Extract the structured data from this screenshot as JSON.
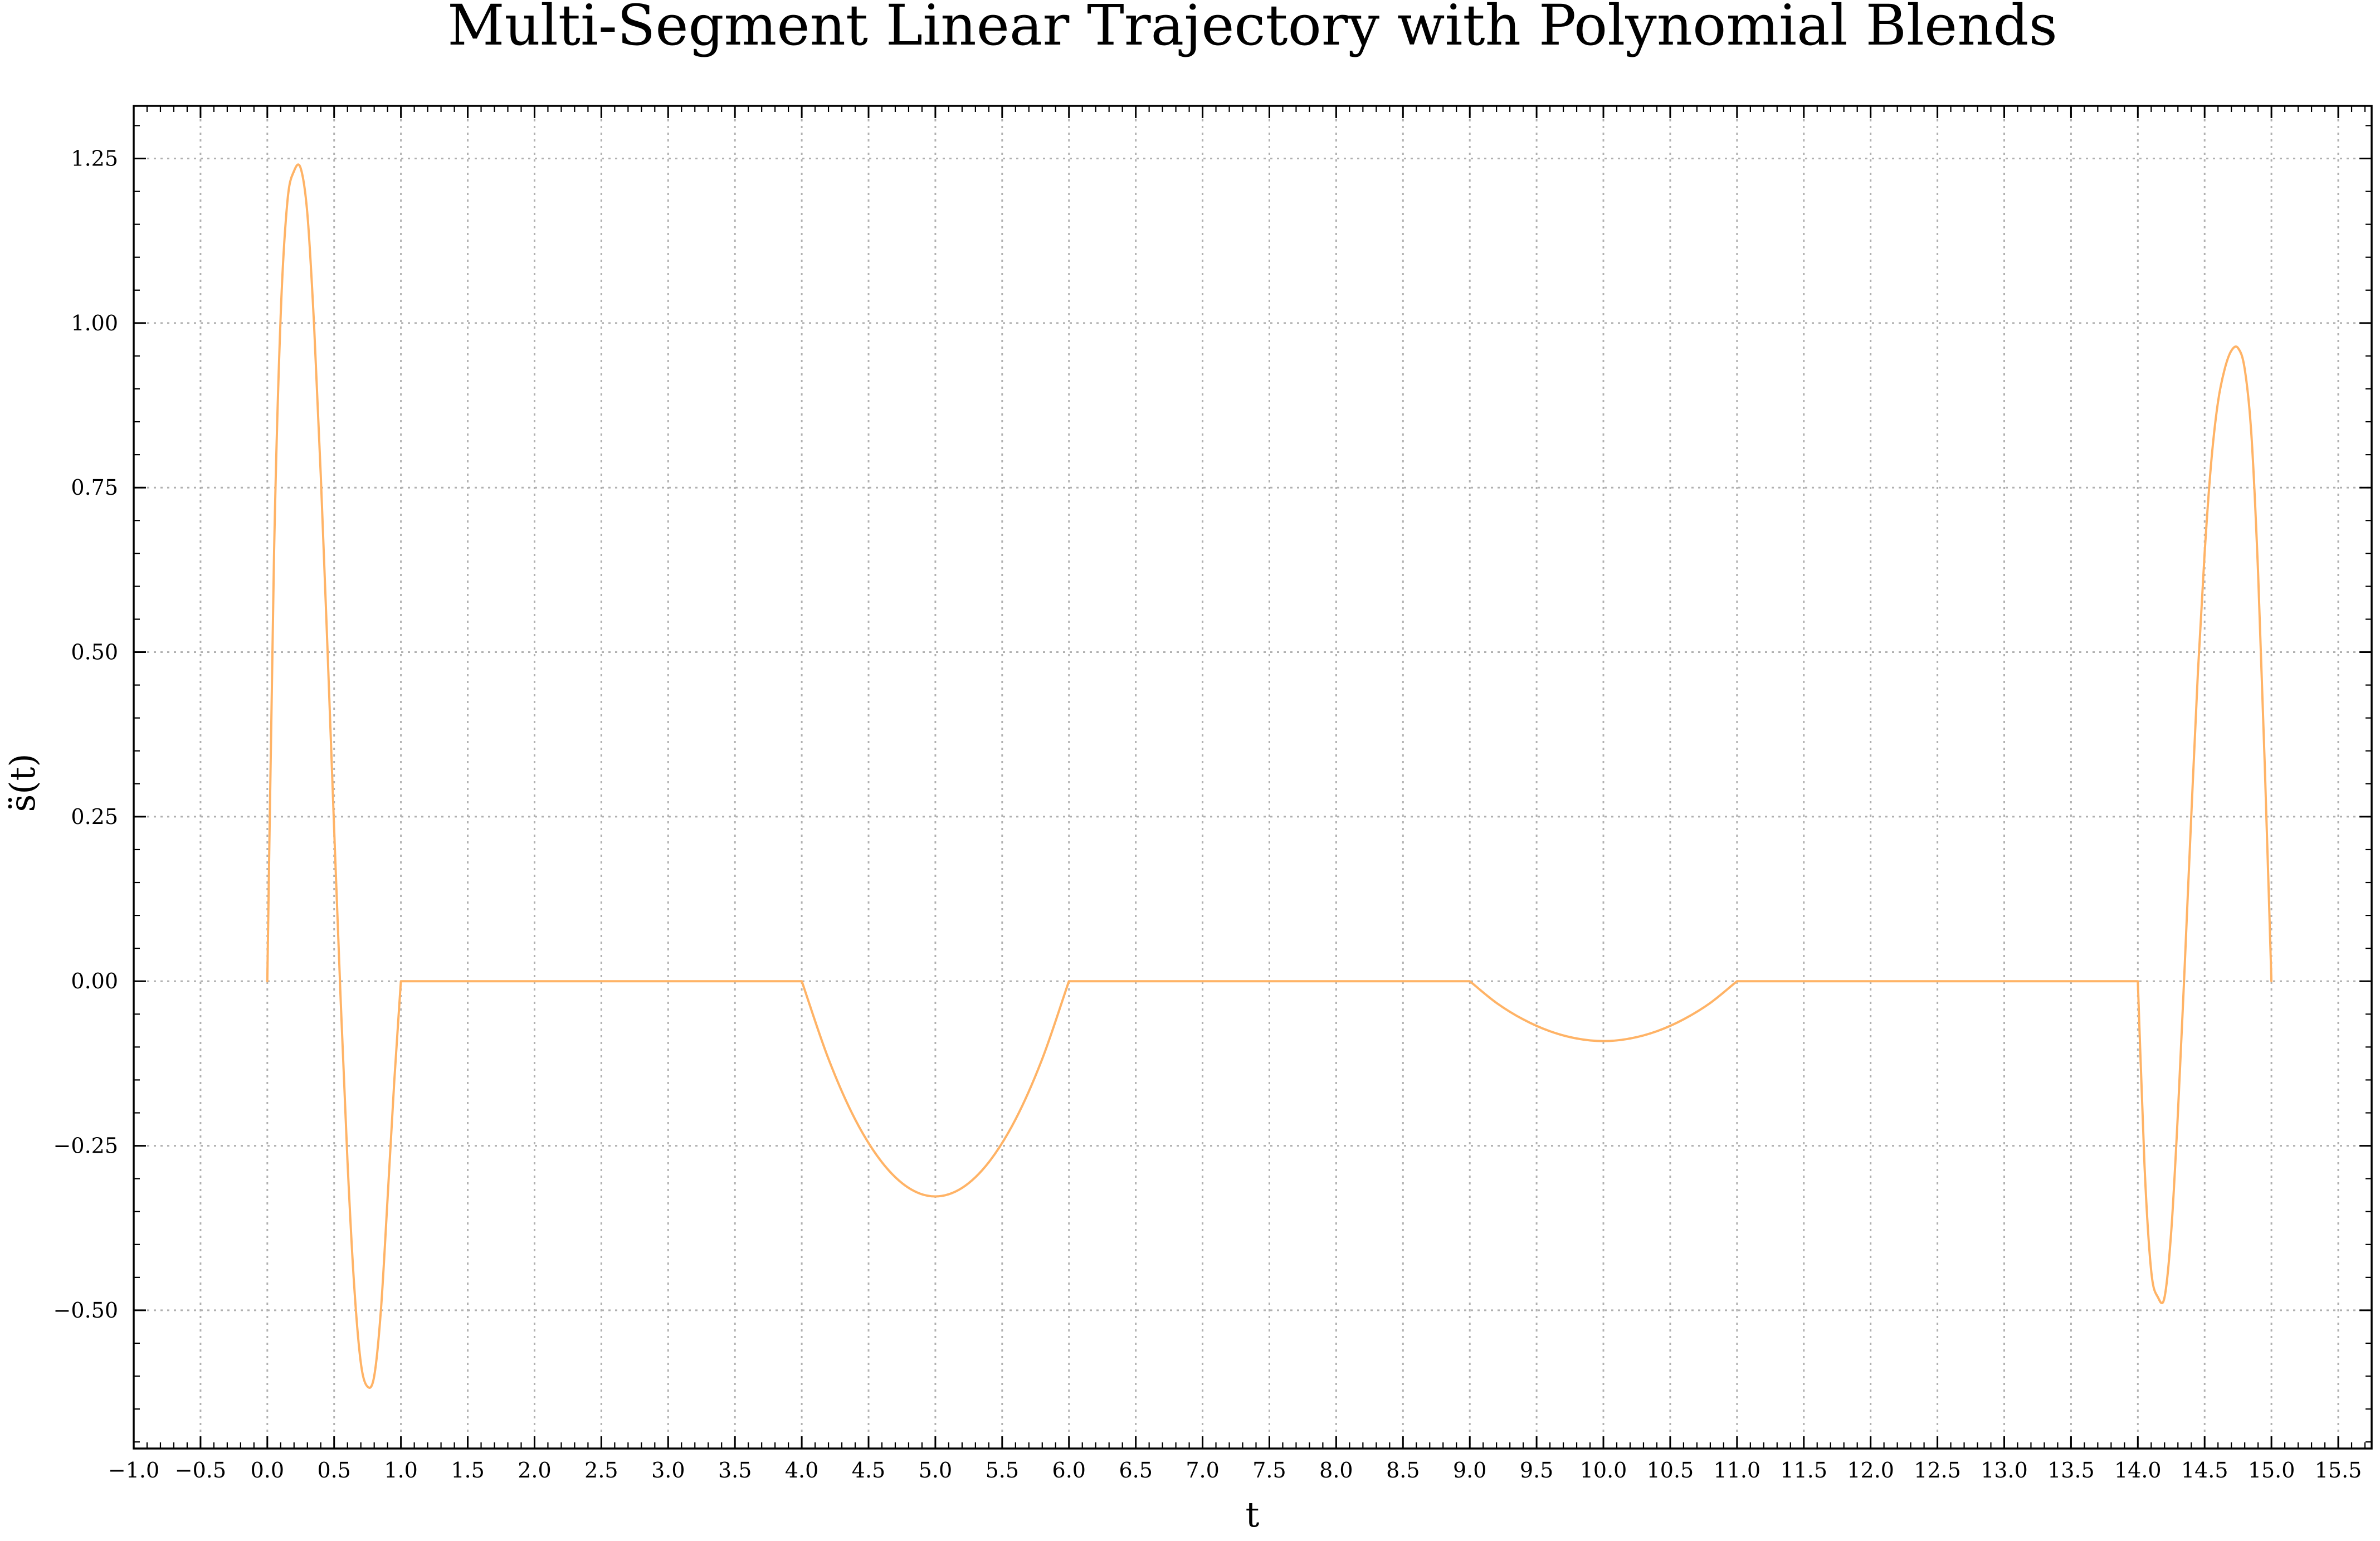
{
  "chart_data": {
    "type": "line",
    "title": "Multi-Segment Linear Trajectory with Polynomial Blends",
    "xlabel": "t",
    "ylabel": "s̈(t)",
    "xlim": [
      -1.0,
      15.75
    ],
    "ylim": [
      -0.71,
      1.33
    ],
    "grid": true,
    "legend": "none",
    "x_ticks": [
      -1.0,
      -0.5,
      0.0,
      0.5,
      1.0,
      1.5,
      2.0,
      2.5,
      3.0,
      3.5,
      4.0,
      4.5,
      5.0,
      5.5,
      6.0,
      6.5,
      7.0,
      7.5,
      8.0,
      8.5,
      9.0,
      9.5,
      10.0,
      10.5,
      11.0,
      11.5,
      12.0,
      12.5,
      13.0,
      13.5,
      14.0,
      14.5,
      15.0,
      15.5
    ],
    "x_tick_labels": [
      "−1.0",
      "−0.5",
      "0.0",
      "0.5",
      "1.0",
      "1.5",
      "2.0",
      "2.5",
      "3.0",
      "3.5",
      "4.0",
      "4.5",
      "5.0",
      "5.5",
      "6.0",
      "6.5",
      "7.0",
      "7.5",
      "8.0",
      "8.5",
      "9.0",
      "9.5",
      "10.0",
      "10.5",
      "11.0",
      "11.5",
      "12.0",
      "12.5",
      "13.0",
      "13.5",
      "14.0",
      "14.5",
      "15.0",
      "15.5"
    ],
    "y_ticks": [
      -0.5,
      -0.25,
      0.0,
      0.25,
      0.5,
      0.75,
      1.0,
      1.25
    ],
    "y_tick_labels": [
      "−0.50",
      "−0.25",
      "0.00",
      "0.25",
      "0.50",
      "0.75",
      "1.00",
      "1.25"
    ],
    "series": [
      {
        "color": "#ffb366",
        "x": [
          0.0,
          0.05,
          0.1,
          0.15,
          0.2,
          0.25,
          0.3,
          0.35,
          0.4,
          0.45,
          0.5,
          0.55,
          0.6,
          0.65,
          0.7,
          0.75,
          0.8,
          0.85,
          0.9,
          0.95,
          1.0,
          4.0,
          4.2,
          4.4,
          4.6,
          4.8,
          5.0,
          5.2,
          5.4,
          5.6,
          5.8,
          6.0,
          9.0,
          9.2,
          9.4,
          9.6,
          9.8,
          10.0,
          10.2,
          10.4,
          10.6,
          10.8,
          11.0,
          14.0,
          14.05,
          14.1,
          14.15,
          14.2,
          14.25,
          14.3,
          14.35,
          14.4,
          14.45,
          14.5,
          14.55,
          14.6,
          14.65,
          14.7,
          14.75,
          14.8,
          14.85,
          14.9,
          14.95,
          15.0
        ],
        "y": [
          0.0,
          0.645,
          1.011,
          1.184,
          1.231,
          1.235,
          1.165,
          0.996,
          0.77,
          0.508,
          0.233,
          -0.033,
          -0.273,
          -0.462,
          -0.58,
          -0.616,
          -0.6,
          -0.5,
          -0.33,
          -0.152,
          0.0,
          0.0,
          -0.118,
          -0.21,
          -0.275,
          -0.314,
          -0.327,
          -0.314,
          -0.275,
          -0.21,
          -0.118,
          0.0,
          0.0,
          -0.033,
          -0.058,
          -0.076,
          -0.087,
          -0.091,
          -0.087,
          -0.076,
          -0.058,
          -0.033,
          0.0,
          0.0,
          -0.28,
          -0.44,
          -0.48,
          -0.48,
          -0.38,
          -0.2,
          0.02,
          0.25,
          0.47,
          0.65,
          0.79,
          0.88,
          0.93,
          0.958,
          0.962,
          0.93,
          0.83,
          0.62,
          0.33,
          0.0
        ]
      }
    ]
  }
}
